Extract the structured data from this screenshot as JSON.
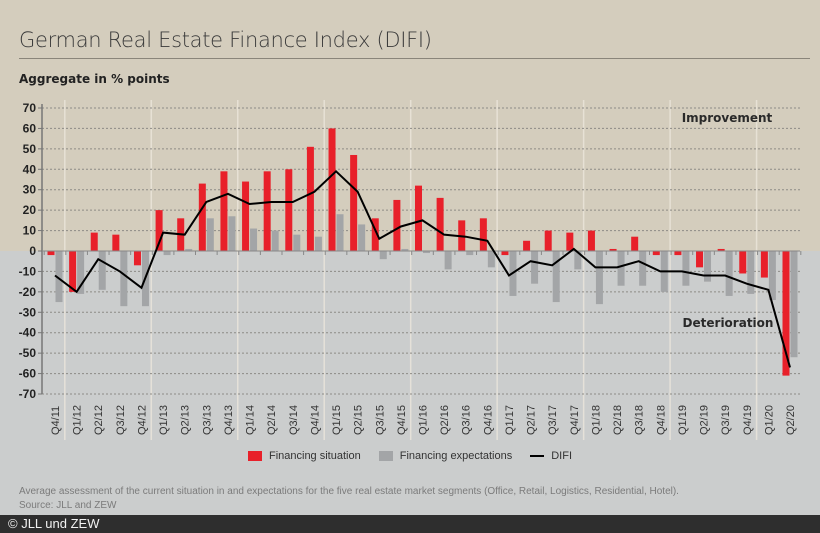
{
  "header": {
    "title": "German Real Estate Finance Index (DIFI)",
    "subtitle": "Aggregate in % points"
  },
  "chart_data": {
    "type": "bar",
    "title": "German Real Estate Finance Index (DIFI)",
    "ylabel": "Aggregate in % points",
    "xlabel": "",
    "ylim": [
      -70,
      70
    ],
    "yticks": [
      70,
      60,
      50,
      40,
      30,
      20,
      10,
      0,
      -10,
      -20,
      -30,
      -40,
      -50,
      -60,
      -70
    ],
    "grid": true,
    "legend_position": "bottom-center",
    "annotations": [
      "Improvement",
      "Deterioration"
    ],
    "categories": [
      "Q4/11",
      "Q1/12",
      "Q2/12",
      "Q3/12",
      "Q4/12",
      "Q1/13",
      "Q2/13",
      "Q3/13",
      "Q4/13",
      "Q1/14",
      "Q2/14",
      "Q3/14",
      "Q4/14",
      "Q1/15",
      "Q2/15",
      "Q3/15",
      "Q4/15",
      "Q1/16",
      "Q2/16",
      "Q3/16",
      "Q4/16",
      "Q1/17",
      "Q2/17",
      "Q3/17",
      "Q4/17",
      "Q1/18",
      "Q2/18",
      "Q3/18",
      "Q4/18",
      "Q1/19",
      "Q2/19",
      "Q3/19",
      "Q4/19",
      "Q1/20",
      "Q2/20"
    ],
    "series": [
      {
        "name": "Financing situation",
        "type": "bar",
        "color": "#e8202a",
        "values": [
          -2,
          -20,
          9,
          8,
          -7,
          20,
          16,
          33,
          39,
          34,
          39,
          40,
          51,
          60,
          47,
          16,
          25,
          32,
          26,
          15,
          16,
          -2,
          5,
          10,
          9,
          10,
          1,
          7,
          -2,
          -2,
          -8,
          1,
          -11,
          -13,
          -61
        ]
      },
      {
        "name": "Financing expectations",
        "type": "bar",
        "color": "#a3a5a7",
        "values": [
          -25,
          -21,
          -19,
          -27,
          -27,
          -2,
          1,
          16,
          17,
          11,
          10,
          8,
          7,
          18,
          13,
          -4,
          1,
          -1,
          -9,
          -2,
          -8,
          -22,
          -16,
          -25,
          -9,
          -26,
          -17,
          -17,
          -20,
          -17,
          -15,
          -22,
          -21,
          -24,
          -52
        ]
      },
      {
        "name": "DIFI",
        "type": "line",
        "color": "#000000",
        "values": [
          -12,
          -20,
          -4,
          -10,
          -18,
          9,
          8,
          24,
          28,
          23,
          24,
          24,
          29,
          39,
          29,
          6,
          12,
          15,
          8,
          7,
          5,
          -12,
          -5,
          -7,
          1,
          -8,
          -8,
          -5,
          -10,
          -10,
          -12,
          -12,
          -16,
          -19,
          -57
        ]
      }
    ]
  },
  "legend": {
    "situation": "Financing situation",
    "expectations": "Financing expectations",
    "difi": "DIFI"
  },
  "footer": {
    "note": "Average assessment of the current situation in and expectations for the five real estate market segments (Office, Retail, Logistics, Residential, Hotel).",
    "source": "Source: JLL and ZEW",
    "copyright": "© JLL und ZEW"
  },
  "colors": {
    "top_background": "#d4cdbd",
    "bottom_background": "#cbcdcd",
    "situation": "#e8202a",
    "expectations": "#a3a5a7",
    "difi": "#000000",
    "footer_bar": "#2e2e2e"
  }
}
